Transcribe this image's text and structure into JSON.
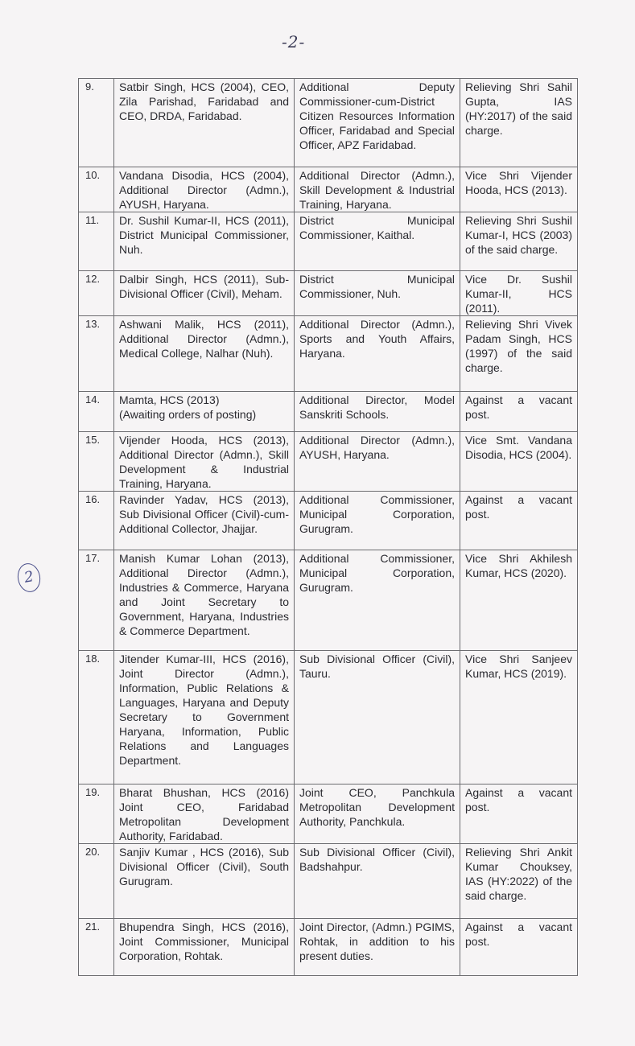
{
  "page_number": "-2-",
  "margin_annotation": "2",
  "rows": [
    {
      "no": "9.",
      "officer": "Satbir Singh, HCS (2004), CEO, Zila Parishad, Faridabad and CEO, DRDA, Faridabad.",
      "posted_as": "Additional Deputy Commissioner-cum-District Citizen Resources Information Officer, Faridabad and Special Officer, APZ Faridabad.",
      "remarks": "Relieving Shri Sahil Gupta, IAS (HY:2017) of the said charge."
    },
    {
      "no": "10.",
      "officer": "Vandana Disodia, HCS (2004), Additional Director (Admn.), AYUSH, Haryana.",
      "posted_as": "Additional Director (Admn.), Skill Development & Industrial Training, Haryana.",
      "remarks": "Vice Shri Vijender Hooda, HCS (2013)."
    },
    {
      "no": "11.",
      "officer": "Dr. Sushil Kumar-II, HCS (2011), District Municipal Commissioner, Nuh.",
      "posted_as": "District Municipal Commissioner, Kaithal.",
      "remarks": "Relieving Shri Sushil Kumar-I, HCS (2003) of the said charge."
    },
    {
      "no": "12.",
      "officer": "Dalbir Singh, HCS (2011), Sub-Divisional Officer (Civil), Meham.",
      "posted_as": "District Municipal Commissioner, Nuh.",
      "remarks": "Vice Dr. Sushil Kumar-II, HCS (2011)."
    },
    {
      "no": "13.",
      "officer": "Ashwani Malik, HCS (2011), Additional Director (Admn.), Medical College, Nalhar (Nuh).",
      "posted_as": "Additional Director (Admn.), Sports and Youth Affairs, Haryana.",
      "remarks": "Relieving Shri Vivek Padam Singh, HCS (1997) of the said charge."
    },
    {
      "no": "14.",
      "officer": "Mamta, HCS (2013)\n(Awaiting orders of posting)",
      "posted_as": "Additional Director, Model Sanskriti Schools.",
      "remarks": "Against a vacant post."
    },
    {
      "no": "15.",
      "officer": "Vijender Hooda, HCS (2013), Additional Director (Admn.), Skill Development & Industrial Training, Haryana.",
      "posted_as": "Additional Director (Admn.), AYUSH, Haryana.",
      "remarks": "Vice Smt. Vandana Disodia, HCS (2004)."
    },
    {
      "no": "16.",
      "officer": "Ravinder Yadav, HCS (2013), Sub Divisional Officer (Civil)-cum-Additional Collector, Jhajjar.",
      "posted_as": "Additional Commissioner, Municipal Corporation, Gurugram.",
      "remarks": "Against a vacant post."
    },
    {
      "no": "17.",
      "officer": "Manish Kumar Lohan (2013), Additional Director (Admn.), Industries & Commerce, Haryana and Joint Secretary to Government, Haryana, Industries & Commerce Department.",
      "posted_as": "Additional Commissioner, Municipal Corporation, Gurugram.",
      "remarks": "Vice Shri Akhilesh Kumar, HCS (2020)."
    },
    {
      "no": "18.",
      "officer": "Jitender Kumar-III, HCS (2016), Joint Director (Admn.), Information, Public Relations & Languages, Haryana and Deputy Secretary to Government Haryana, Information, Public Relations and Languages Department.",
      "posted_as": "Sub Divisional Officer (Civil), Tauru.",
      "remarks": "Vice Shri Sanjeev Kumar, HCS (2019)."
    },
    {
      "no": "19.",
      "officer": "Bharat Bhushan, HCS (2016) Joint CEO, Faridabad Metropolitan Development Authority, Faridabad.",
      "posted_as": "Joint CEO, Panchkula Metropolitan Development Authority, Panchkula.",
      "remarks": "Against a vacant post."
    },
    {
      "no": "20.",
      "officer": "Sanjiv Kumar , HCS (2016), Sub Divisional Officer (Civil), South Gurugram.",
      "posted_as": "Sub Divisional Officer (Civil), Badshahpur.",
      "remarks": "Relieving Shri Ankit Kumar Chouksey, IAS (HY:2022) of the said charge."
    },
    {
      "no": "21.",
      "officer": "Bhupendra Singh, HCS (2016), Joint Commissioner, Municipal Corporation, Rohtak.",
      "posted_as": "Joint Director, (Admn.) PGIMS, Rohtak, in addition to his present duties.",
      "remarks": "Against a vacant post."
    }
  ]
}
